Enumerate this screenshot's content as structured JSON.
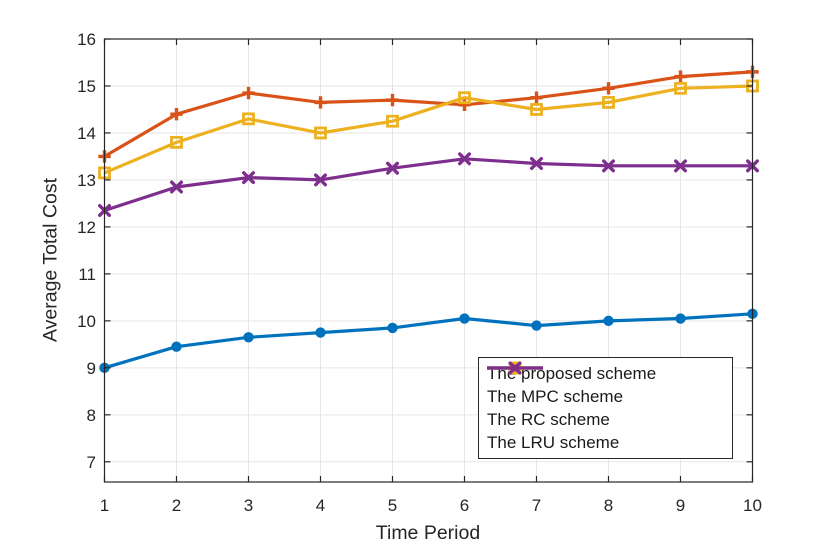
{
  "chart_data": {
    "type": "line",
    "title": "",
    "xlabel": "Time Period",
    "ylabel": "Average Total Cost",
    "x": [
      1,
      2,
      3,
      4,
      5,
      6,
      7,
      8,
      9,
      10
    ],
    "xlim": [
      1,
      10
    ],
    "ylim": [
      6.57,
      16
    ],
    "xticks": [
      1,
      2,
      3,
      4,
      5,
      6,
      7,
      8,
      9,
      10
    ],
    "yticks": [
      7,
      8,
      9,
      10,
      11,
      12,
      13,
      14,
      15,
      16
    ],
    "grid": true,
    "grid_color": "#e6e6e6",
    "axis_color": "#262626",
    "background_color": "#ffffff",
    "legend_position": "southeast-inside",
    "series": [
      {
        "name": "The proposed scheme",
        "color": "#0072BD",
        "marker": "circle",
        "values": [
          9.0,
          9.45,
          9.65,
          9.75,
          9.85,
          10.05,
          9.9,
          10.0,
          10.05,
          10.15
        ]
      },
      {
        "name": "The MPC scheme",
        "color": "#D95319",
        "marker": "plus",
        "values": [
          13.5,
          14.4,
          14.85,
          14.65,
          14.7,
          14.6,
          14.75,
          14.95,
          15.2,
          15.3
        ]
      },
      {
        "name": "The RC scheme",
        "color": "#EDB120",
        "marker": "square",
        "values": [
          13.15,
          13.8,
          14.3,
          14.0,
          14.25,
          14.75,
          14.5,
          14.65,
          14.95,
          15.0
        ]
      },
      {
        "name": "The LRU scheme",
        "color": "#7E2F8E",
        "marker": "x",
        "values": [
          12.35,
          12.85,
          13.05,
          13.0,
          13.25,
          13.45,
          13.35,
          13.3,
          13.3,
          13.3
        ]
      }
    ]
  }
}
